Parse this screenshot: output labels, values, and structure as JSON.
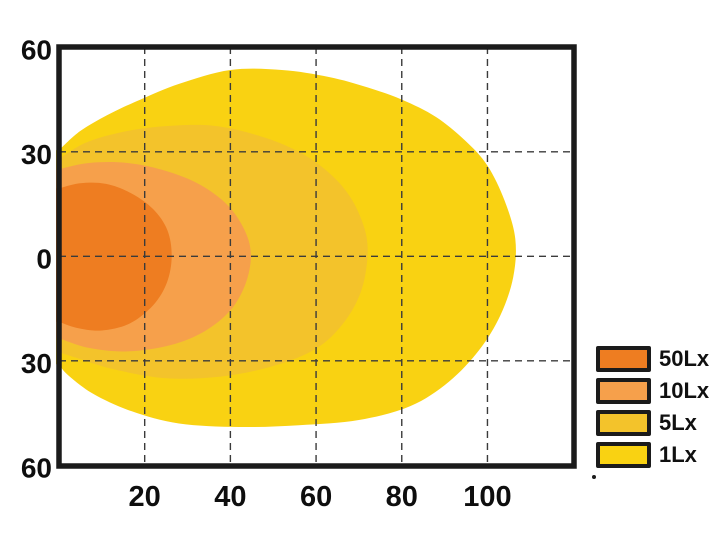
{
  "chart_data": {
    "type": "contour",
    "description": "Nested isolux illumination contours, light source at left edge center",
    "x_ticks": [
      {
        "value": 20,
        "label": "20"
      },
      {
        "value": 40,
        "label": "40"
      },
      {
        "value": 60,
        "label": "60"
      },
      {
        "value": 80,
        "label": "80"
      },
      {
        "value": 100,
        "label": "100"
      }
    ],
    "y_ticks": [
      {
        "value": 60,
        "label": "60"
      },
      {
        "value": 30,
        "label": "30"
      },
      {
        "value": 0,
        "label": "0"
      },
      {
        "value": -30,
        "label": "30"
      },
      {
        "value": -60,
        "label": "60"
      }
    ],
    "x_range": [
      0,
      120.2
    ],
    "y_range": [
      -60.2,
      60.1
    ],
    "grid": {
      "x_values": [
        20,
        40,
        60,
        80,
        100
      ],
      "y_values": [
        30,
        0,
        -30
      ],
      "line_style": "dashed",
      "color": "#3b3b3b"
    },
    "frame_color": "#1b1b1b",
    "background_color": "#ffffff",
    "levels": [
      {
        "name": "1Lx",
        "lux": 1,
        "color": "#F9D212",
        "points": [
          [
            0,
            30.5
          ],
          [
            5,
            36
          ],
          [
            12,
            41
          ],
          [
            19,
            45
          ],
          [
            28,
            49.5
          ],
          [
            40,
            53.5
          ],
          [
            52,
            53.5
          ],
          [
            63,
            51.5
          ],
          [
            72,
            48.5
          ],
          [
            80,
            45
          ],
          [
            88,
            40
          ],
          [
            95,
            33
          ],
          [
            100,
            26
          ],
          [
            104,
            16
          ],
          [
            106.5,
            5
          ],
          [
            106,
            -6
          ],
          [
            103,
            -17
          ],
          [
            98,
            -27
          ],
          [
            91,
            -36
          ],
          [
            82,
            -43
          ],
          [
            70,
            -47
          ],
          [
            56,
            -48.5
          ],
          [
            42,
            -49
          ],
          [
            28,
            -48
          ],
          [
            17,
            -44.5
          ],
          [
            8,
            -39.5
          ],
          [
            2,
            -34
          ],
          [
            0,
            -31
          ]
        ]
      },
      {
        "name": "5Lx",
        "lux": 5,
        "color": "#F3C32B",
        "points": [
          [
            0,
            28
          ],
          [
            6,
            32.5
          ],
          [
            14,
            35.5
          ],
          [
            24,
            37.3
          ],
          [
            36,
            37.5
          ],
          [
            47,
            34.5
          ],
          [
            56,
            30
          ],
          [
            63,
            24
          ],
          [
            68,
            17
          ],
          [
            71.3,
            8
          ],
          [
            72,
            0
          ],
          [
            70.5,
            -10
          ],
          [
            66.5,
            -19
          ],
          [
            60,
            -26.5
          ],
          [
            50,
            -31.5
          ],
          [
            38,
            -34.5
          ],
          [
            25,
            -35
          ],
          [
            13,
            -32.5
          ],
          [
            5,
            -29.5
          ],
          [
            0,
            -27.5
          ]
        ]
      },
      {
        "name": "10Lx",
        "lux": 10,
        "color": "#F6A04B",
        "points": [
          [
            0,
            25
          ],
          [
            7,
            26.8
          ],
          [
            16,
            26.8
          ],
          [
            25,
            24.5
          ],
          [
            33,
            20.5
          ],
          [
            39.5,
            14.5
          ],
          [
            43.5,
            7
          ],
          [
            44.8,
            0
          ],
          [
            43.5,
            -8
          ],
          [
            40,
            -15.5
          ],
          [
            34,
            -21.5
          ],
          [
            26,
            -25.5
          ],
          [
            16,
            -27.3
          ],
          [
            7,
            -26.3
          ],
          [
            0,
            -23.5
          ]
        ]
      },
      {
        "name": "50Lx",
        "lux": 50,
        "color": "#EE7D21",
        "points": [
          [
            0,
            19.5
          ],
          [
            5,
            21
          ],
          [
            11,
            20.8
          ],
          [
            17,
            18
          ],
          [
            22,
            13.5
          ],
          [
            25.3,
            7.5
          ],
          [
            26.3,
            0
          ],
          [
            25.2,
            -7.5
          ],
          [
            22,
            -14
          ],
          [
            16.5,
            -19.3
          ],
          [
            10,
            -21.3
          ],
          [
            4,
            -20.5
          ],
          [
            0,
            -18.8
          ]
        ]
      }
    ],
    "legend": {
      "position": "bottom-right",
      "entries": [
        {
          "label": "50Lx",
          "color": "#EE7D21"
        },
        {
          "label": "10Lx",
          "color": "#F6A04B"
        },
        {
          "label": "5Lx",
          "color": "#F3C32B"
        },
        {
          "label": "1Lx",
          "color": "#F9D212"
        }
      ]
    }
  }
}
